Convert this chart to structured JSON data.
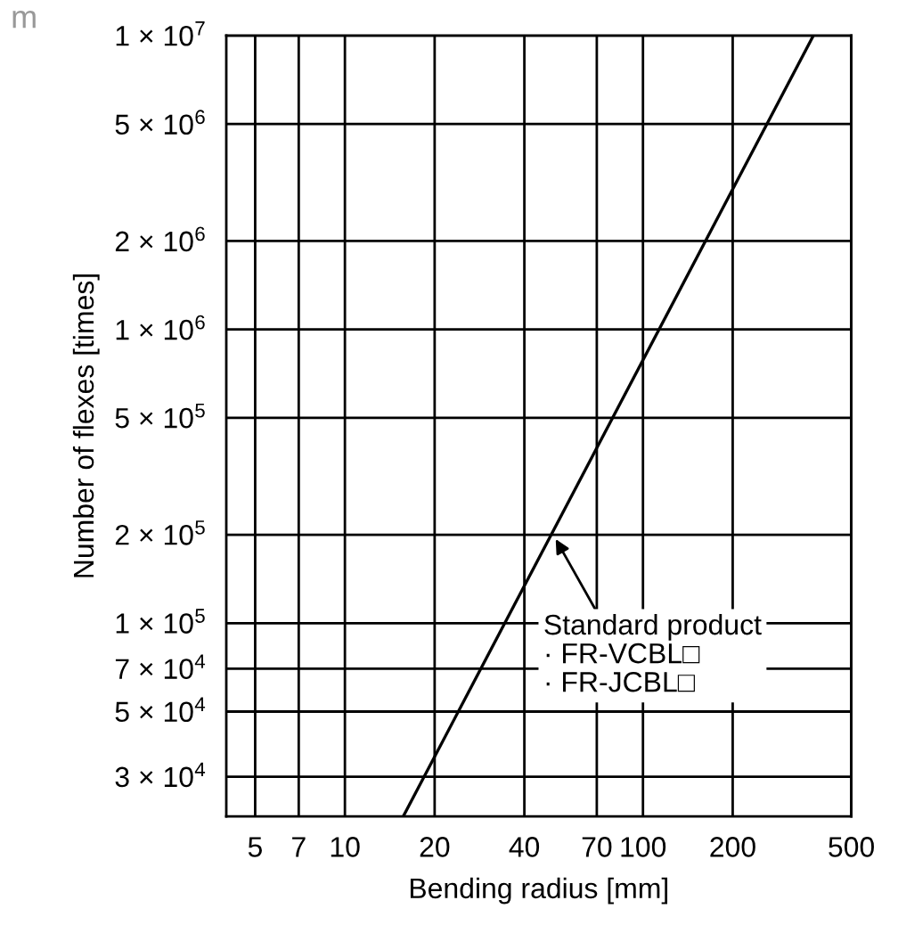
{
  "chart_data": {
    "type": "line",
    "xlabel": "Bending radius [mm]",
    "ylabel": "Number of flexes [times]",
    "x": [
      15.7,
      373
    ],
    "series": [
      {
        "color": "#000000",
        "values": [
          22000,
          10000000
        ]
      }
    ],
    "log": "xy",
    "grid": true,
    "marker": "none",
    "line_style": "solid",
    "xlim": [
      4,
      500
    ],
    "xticks": [
      5,
      7,
      10,
      20,
      40,
      70,
      100,
      200,
      500
    ],
    "ylim": [
      22000,
      10000000
    ],
    "yticks": [
      {
        "value": 30000,
        "label": "3 × 10$^{4}$"
      },
      {
        "value": 50000,
        "label": "5 × 10$^{4}$"
      },
      {
        "value": 70000,
        "label": "7 × 10$^{4}$"
      },
      {
        "value": 100000,
        "label": "1 × 10$^{5}$"
      },
      {
        "value": 200000,
        "label": "2 × 10$^{5}$"
      },
      {
        "value": 500000,
        "label": "5 × 10$^{5}$"
      },
      {
        "value": 1000000,
        "label": "1 × 10$^{6}$"
      },
      {
        "value": 2000000,
        "label": "2 × 10$^{6}$"
      },
      {
        "value": 5000000,
        "label": "5 × 10$^{6}$"
      },
      {
        "value": 10000000,
        "label": "1 × 10$^{7}$"
      }
    ],
    "annotations": [
      {
        "text": "Standard product\n· FR-VCBL□\n· FR-JCBL□",
        "x": 50,
        "y": 200000
      },
      "m"
    ]
  }
}
